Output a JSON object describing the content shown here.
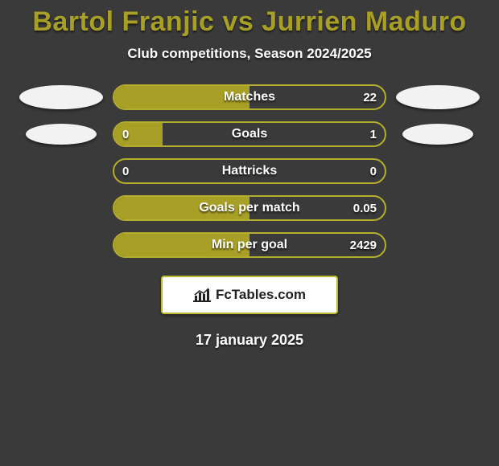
{
  "title": "Bartol Franjic vs Jurrien Maduro",
  "subtitle": "Club competitions, Season 2024/2025",
  "date": "17 january 2025",
  "badge_text": "FcTables.com",
  "colors": {
    "olive": "#a8a026",
    "olive_border": "#b5ad2e",
    "background": "#3a3a3a",
    "white": "#ffffff",
    "ellipse": "#f2f2f2"
  },
  "stats": [
    {
      "label": "Matches",
      "left_value": "",
      "right_value": "22",
      "left_fill_pct": 50,
      "right_fill_pct": 0,
      "has_left_ellipse": true,
      "has_right_ellipse": true,
      "ellipse_size": "large",
      "bar_fill_color": "#a8a026",
      "bar_bg_color": "transparent",
      "border_color": "#b5ad2e"
    },
    {
      "label": "Goals",
      "left_value": "0",
      "right_value": "1",
      "left_fill_pct": 18,
      "right_fill_pct": 0,
      "has_left_ellipse": true,
      "has_right_ellipse": true,
      "ellipse_size": "small",
      "bar_fill_color": "#a8a026",
      "bar_bg_color": "transparent",
      "border_color": "#b5ad2e"
    },
    {
      "label": "Hattricks",
      "left_value": "0",
      "right_value": "0",
      "left_fill_pct": 0,
      "right_fill_pct": 0,
      "has_left_ellipse": false,
      "has_right_ellipse": false,
      "ellipse_size": "none",
      "bar_fill_color": "#a8a026",
      "bar_bg_color": "transparent",
      "border_color": "#b5ad2e"
    },
    {
      "label": "Goals per match",
      "left_value": "",
      "right_value": "0.05",
      "left_fill_pct": 50,
      "right_fill_pct": 0,
      "has_left_ellipse": false,
      "has_right_ellipse": false,
      "ellipse_size": "none",
      "bar_fill_color": "#a8a026",
      "bar_bg_color": "transparent",
      "border_color": "#b5ad2e"
    },
    {
      "label": "Min per goal",
      "left_value": "",
      "right_value": "2429",
      "left_fill_pct": 50,
      "right_fill_pct": 0,
      "has_left_ellipse": false,
      "has_right_ellipse": false,
      "ellipse_size": "none",
      "bar_fill_color": "#a8a026",
      "bar_bg_color": "transparent",
      "border_color": "#b5ad2e"
    }
  ]
}
